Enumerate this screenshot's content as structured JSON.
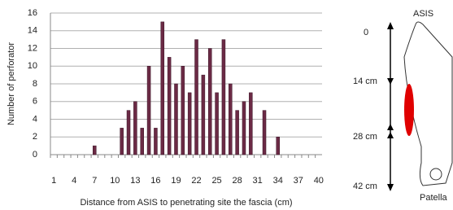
{
  "chart_data": {
    "type": "bar",
    "x_label": "Distance from ASIS to penetrating site the fascia (cm)",
    "y_label": "Number of perforator",
    "categories": [
      1,
      null,
      null,
      4,
      null,
      null,
      7,
      null,
      null,
      10,
      null,
      null,
      13,
      null,
      null,
      16,
      null,
      null,
      19,
      null,
      null,
      22,
      null,
      null,
      25,
      null,
      null,
      28,
      null,
      null,
      31,
      null,
      null,
      34,
      null,
      null,
      37,
      null,
      null,
      40
    ],
    "values": [
      0,
      0,
      0,
      0,
      0,
      0,
      1,
      0,
      0,
      0,
      3,
      5,
      6,
      3,
      10,
      3,
      15,
      11,
      8,
      10,
      7,
      13,
      9,
      12,
      7,
      13,
      8,
      5,
      6,
      7,
      0,
      5,
      0,
      2,
      0,
      0,
      0,
      0,
      0,
      0
    ],
    "color": "#6b2a45",
    "ylim": [
      0,
      16
    ],
    "yticks": [
      0,
      2,
      4,
      6,
      8,
      10,
      12,
      14,
      16
    ],
    "grid": true
  },
  "diagram": {
    "top_label": "ASIS",
    "bottom_label": "Patella",
    "scale_labels": [
      "0",
      "14 cm",
      "28 cm",
      "42 cm"
    ]
  }
}
